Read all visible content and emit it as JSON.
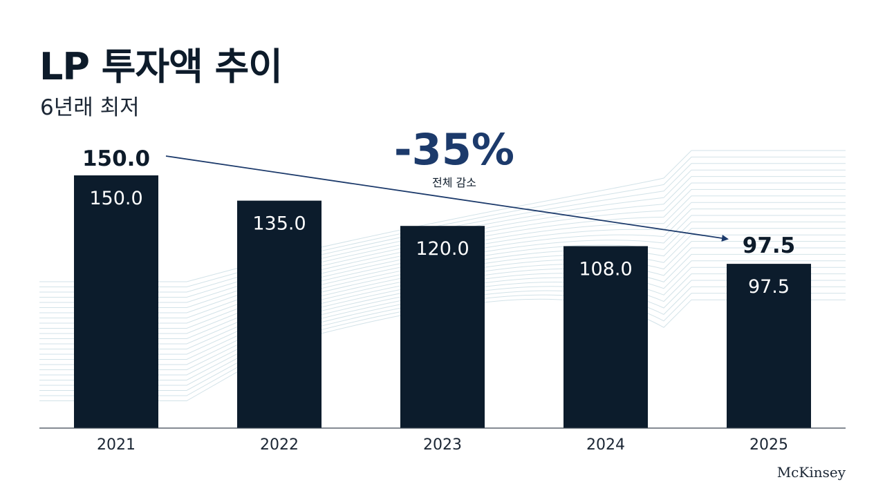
{
  "title": "LP 투자액 추이",
  "subtitle": "6년래 최저",
  "brand": "McKinsey",
  "colors": {
    "bar": "#0c1c2c",
    "background_lines": "#d2e2e8",
    "arrow": "#1c3a6b",
    "change": "#1c3a6b",
    "label_text": "#0d1b2a"
  },
  "chart_data": {
    "type": "bar",
    "categories": [
      "2021",
      "2022",
      "2023",
      "2024",
      "2025"
    ],
    "values": [
      150.0,
      135.0,
      120.0,
      108.0,
      97.5
    ],
    "value_labels": [
      "150.0",
      "135.0",
      "120.0",
      "108.0",
      "97.5"
    ],
    "ylim": [
      0,
      150
    ],
    "grid": false,
    "annotations": {
      "start_label": "150.0",
      "end_label": "97.5",
      "change": "-35%",
      "change_caption": "전체 감소"
    }
  }
}
